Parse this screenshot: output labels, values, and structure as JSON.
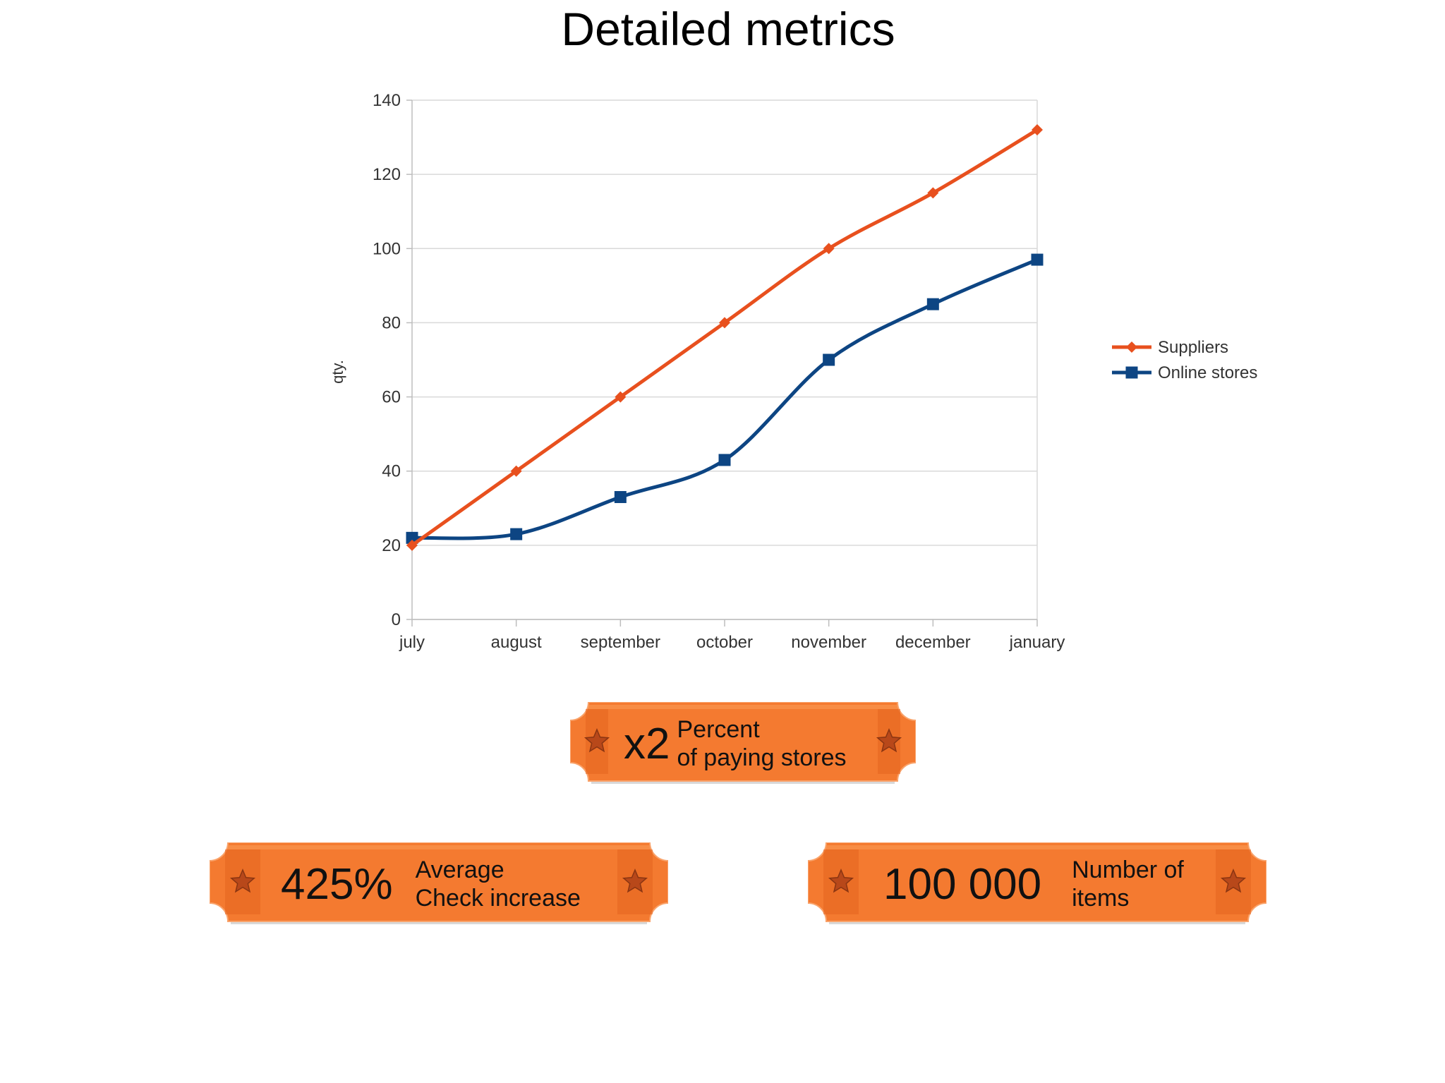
{
  "title": "Detailed metrics",
  "chart_data": {
    "type": "line",
    "title": "Detailed metrics",
    "categories": [
      "july",
      "august",
      "september",
      "october",
      "november",
      "december",
      "january"
    ],
    "series": [
      {
        "name": "Suppliers",
        "values": [
          20,
          40,
          60,
          80,
          100,
          115,
          132
        ],
        "color": "#E8501E",
        "marker": "diamond"
      },
      {
        "name": "Online stores",
        "values": [
          22,
          23,
          33,
          43,
          70,
          85,
          97
        ],
        "color": "#0D4583",
        "marker": "square"
      }
    ],
    "xlabel": "",
    "ylabel": "qty.",
    "ylim": [
      0,
      140
    ],
    "yticks": [
      0,
      20,
      40,
      60,
      80,
      100,
      120,
      140
    ],
    "grid": true,
    "legend": "right",
    "smooth": true
  },
  "badges": [
    {
      "value": "x2",
      "line1": "Percent",
      "line2": "of paying stores"
    },
    {
      "value": "425%",
      "line1": "Average",
      "line2": "Check increase"
    },
    {
      "value": "100 000",
      "line1": "Number of",
      "line2": "items"
    }
  ],
  "colors": {
    "badge_fill": "#F47A30",
    "badge_dark": "#E3651F",
    "star": "#B8481A"
  }
}
